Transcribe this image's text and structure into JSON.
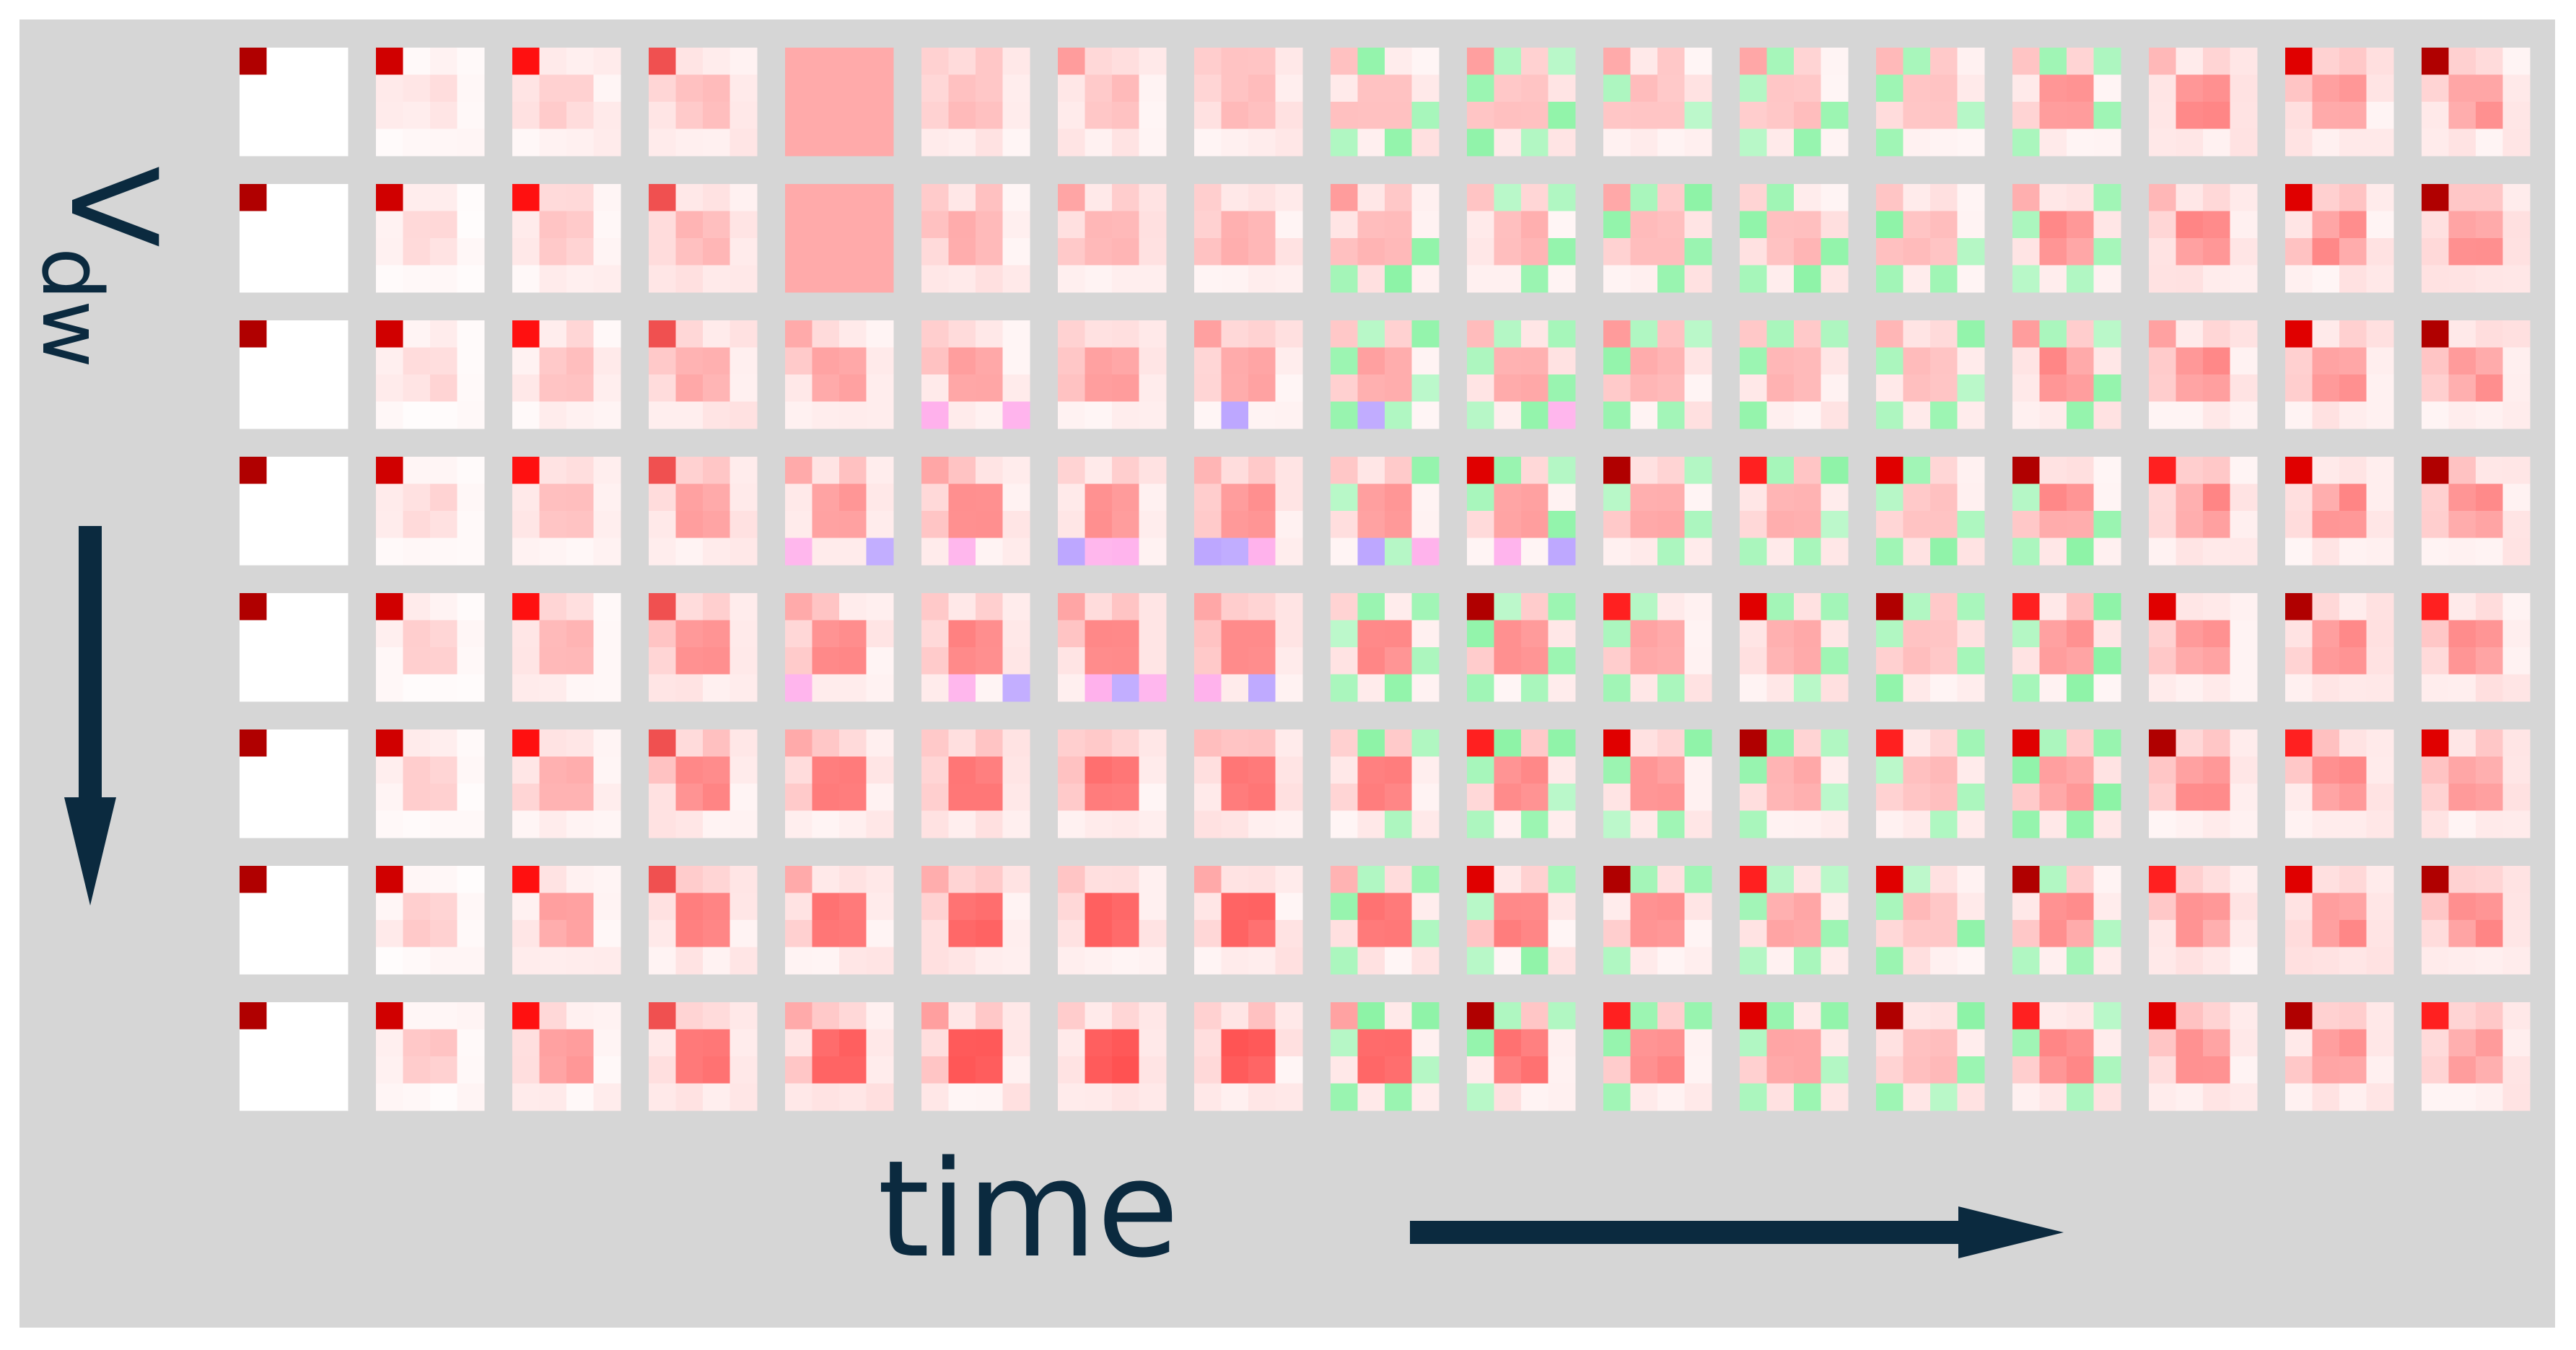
{
  "figure": {
    "x_label": "time",
    "y_label": {
      "main": "V",
      "subscript": "dw"
    }
  }
}
